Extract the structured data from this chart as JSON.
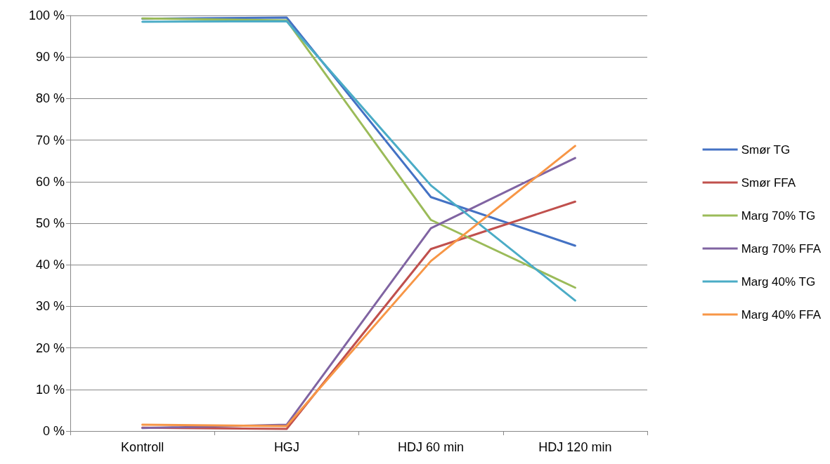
{
  "chart_data": {
    "type": "line",
    "categories": [
      "Kontroll",
      "HGJ",
      "HDJ 60 min",
      "HDJ 120 min"
    ],
    "series": [
      {
        "name": "Smør TG",
        "color": "#4472c4",
        "values": [
          99.2,
          99.5,
          56.3,
          44.6
        ]
      },
      {
        "name": "Smør FFA",
        "color": "#c0504d",
        "values": [
          0.8,
          0.5,
          43.8,
          55.2
        ]
      },
      {
        "name": "Marg 70% TG",
        "color": "#9bbb59",
        "values": [
          99.3,
          98.8,
          50.8,
          34.5
        ]
      },
      {
        "name": "Marg 70% FFA",
        "color": "#8064a2",
        "values": [
          0.7,
          1.5,
          48.8,
          65.7
        ]
      },
      {
        "name": "Marg 40% TG",
        "color": "#4bacc6",
        "values": [
          98.5,
          98.6,
          59.1,
          31.4
        ]
      },
      {
        "name": "Marg 40% FFA",
        "color": "#f79646",
        "values": [
          1.5,
          1.2,
          40.9,
          68.6
        ]
      }
    ],
    "ylim": [
      0,
      100
    ],
    "yticks": [
      {
        "value": 0,
        "label": "0 %"
      },
      {
        "value": 10,
        "label": "10 %"
      },
      {
        "value": 20,
        "label": "20 %"
      },
      {
        "value": 30,
        "label": "30 %"
      },
      {
        "value": 40,
        "label": "40 %"
      },
      {
        "value": 50,
        "label": "50 %"
      },
      {
        "value": 60,
        "label": "60 %"
      },
      {
        "value": 70,
        "label": "70 %"
      },
      {
        "value": 80,
        "label": "80 %"
      },
      {
        "value": 90,
        "label": "90 %"
      },
      {
        "value": 100,
        "label": "100 %"
      }
    ],
    "grid": "y",
    "legend": "right",
    "marker": "none",
    "line_style": "solid"
  }
}
